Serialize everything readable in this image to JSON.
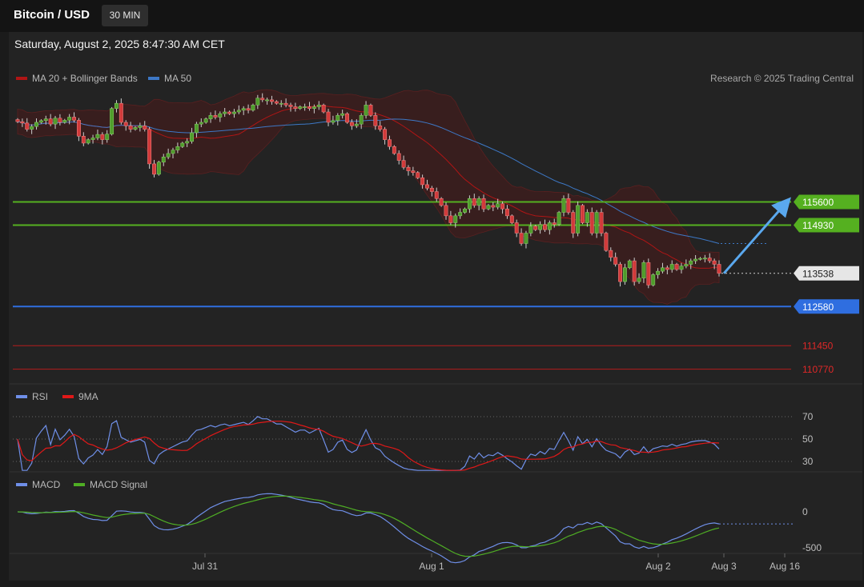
{
  "header": {
    "pair": "Bitcoin / USD",
    "timeframe": "30 MIN",
    "datetime": "Saturday, August 2, 2025 8:47:30 AM CET"
  },
  "legend": {
    "main": [
      {
        "label": "MA 20 + Bollinger Bands",
        "color": "#b01515"
      },
      {
        "label": "MA 50",
        "color": "#3d78c6"
      }
    ],
    "rsi": [
      {
        "label": "RSI",
        "color": "#6f8fe8"
      },
      {
        "label": "9MA",
        "color": "#e01818"
      }
    ],
    "macd": [
      {
        "label": "MACD",
        "color": "#6f8fe8"
      },
      {
        "label": "MACD Signal",
        "color": "#4fae24"
      }
    ]
  },
  "credit": "Research © 2025 Trading Central",
  "colors": {
    "up": "#4f9d2b",
    "down": "#d23a3a",
    "resistance": "#55b020",
    "support": "#2f6ee0",
    "support_weak": "#b51c1c",
    "arrow": "#5aa8ee"
  },
  "levels": [
    {
      "value": 115600,
      "label": "115600",
      "type": "resistance"
    },
    {
      "value": 114930,
      "label": "114930",
      "type": "resistance"
    },
    {
      "value": 113538,
      "label": "113538",
      "type": "current"
    },
    {
      "value": 112580,
      "label": "112580",
      "type": "support"
    },
    {
      "value": 111450,
      "label": "111450",
      "type": "support_weak"
    },
    {
      "value": 110770,
      "label": "110770",
      "type": "support_weak"
    }
  ],
  "chart_data": [
    {
      "type": "candlestick",
      "name": "price",
      "ylim": [
        110600,
        118500
      ],
      "x_labels": [
        "Jul 31",
        "Aug 1",
        "Aug 2",
        "Aug 3",
        "Aug 16"
      ],
      "close": [
        117920,
        117880,
        117700,
        117780,
        117900,
        117950,
        118000,
        117850,
        118020,
        117900,
        117960,
        118050,
        117960,
        117500,
        117300,
        117400,
        117450,
        117550,
        117400,
        117560,
        118300,
        118450,
        117900,
        117800,
        117700,
        117750,
        117800,
        117700,
        116700,
        116400,
        116750,
        116900,
        117000,
        117100,
        117200,
        117300,
        117350,
        117600,
        117850,
        117900,
        118000,
        118100,
        118050,
        118150,
        118200,
        118150,
        118200,
        118250,
        118300,
        118250,
        118400,
        118600,
        118550,
        118550,
        118500,
        118450,
        118450,
        118400,
        118350,
        118300,
        118350,
        118350,
        118300,
        118350,
        118400,
        118200,
        117900,
        117950,
        118100,
        118150,
        117900,
        117800,
        117850,
        118100,
        118400,
        118100,
        117800,
        117700,
        117400,
        117200,
        117000,
        116800,
        116600,
        116500,
        116450,
        116300,
        116100,
        116000,
        115900,
        115700,
        115500,
        115200,
        115000,
        115200,
        115300,
        115400,
        115700,
        115500,
        115700,
        115400,
        115500,
        115450,
        115550,
        115400,
        115200,
        115000,
        114700,
        114400,
        114700,
        114900,
        114800,
        114950,
        114800,
        115000,
        114950,
        115300,
        115700,
        115300,
        114700,
        115500,
        115000,
        115300,
        114700,
        115300,
        114700,
        114200,
        114000,
        113800,
        113300,
        113700,
        113900,
        113300,
        113400,
        113850,
        113200,
        113500,
        113600,
        113700,
        113650,
        113800,
        113650,
        113750,
        113800,
        113900,
        113950,
        113970,
        113980,
        113900,
        113800,
        113538
      ]
    },
    {
      "type": "line",
      "name": "RSI",
      "ylim": [
        20,
        80
      ],
      "ticks": [
        70,
        50,
        30
      ]
    },
    {
      "type": "line",
      "name": "MACD",
      "ylim": [
        -700,
        300
      ],
      "ticks": [
        0,
        -500
      ]
    }
  ]
}
